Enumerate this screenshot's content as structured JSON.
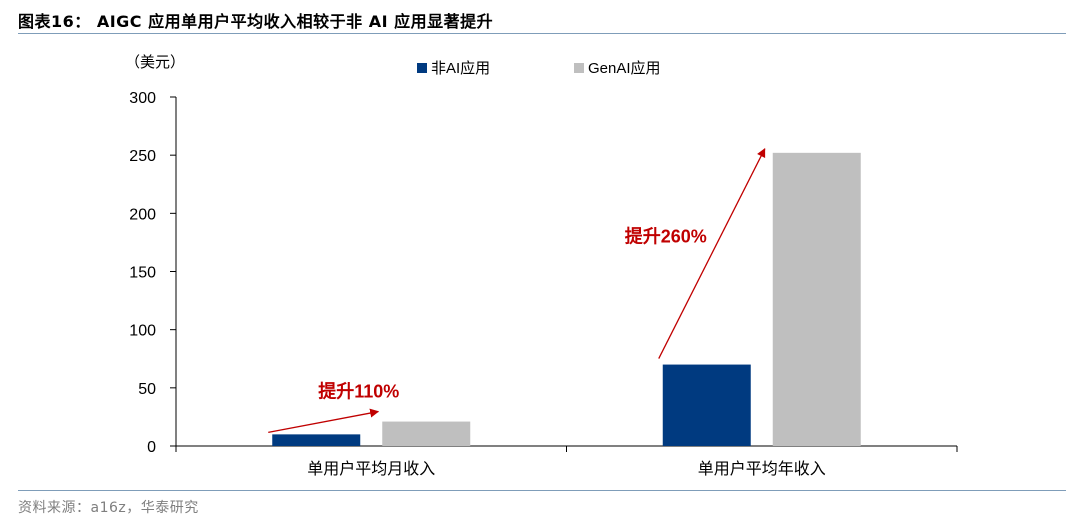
{
  "title": "图表16： AIGC 应用单用户平均收入相较于非 AI 应用显著提升",
  "source": "资料来源：a16z，华泰研究",
  "colors": {
    "non_ai": "#003a80",
    "genai": "#bfbfbf",
    "annotation": "#c00000",
    "rule": "#7f9db9"
  },
  "chart_data": {
    "type": "bar",
    "unit_label": "（美元）",
    "categories": [
      "单用户平均月收入",
      "单用户平均年收入"
    ],
    "series": [
      {
        "name": "非AI应用",
        "values": [
          10,
          70
        ]
      },
      {
        "name": "GenAI应用",
        "values": [
          21,
          252
        ]
      }
    ],
    "ylim": [
      0,
      300
    ],
    "yticks": [
      0,
      50,
      100,
      150,
      200,
      250,
      300
    ],
    "legend_position": "top",
    "grid": false,
    "annotations": [
      {
        "text": "提升110%",
        "category_index": 0
      },
      {
        "text": "提升260%",
        "category_index": 1
      }
    ]
  }
}
